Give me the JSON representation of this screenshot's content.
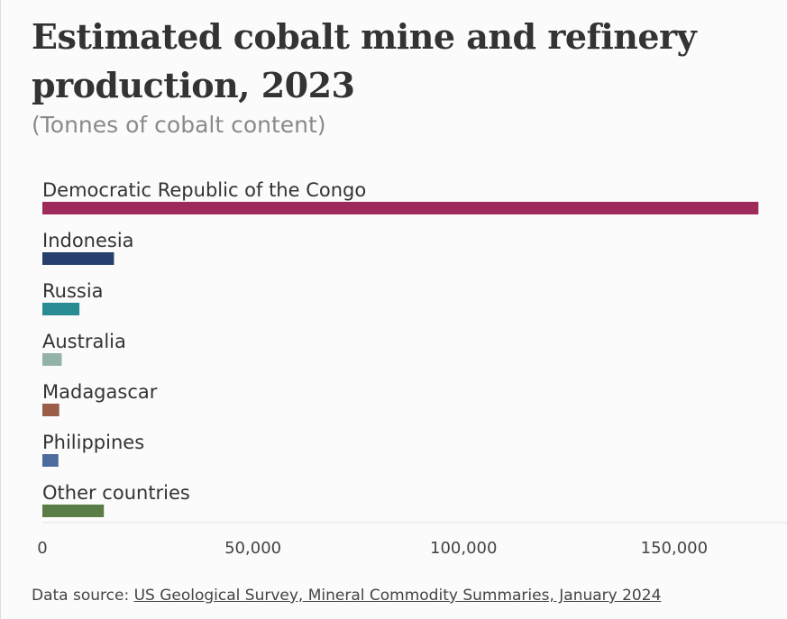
{
  "header": {
    "title": "Estimated cobalt mine and refinery production, 2023",
    "subtitle": "(Tonnes of cobalt content)"
  },
  "footer": {
    "source_prefix": "Data source: ",
    "source_link": "US Geological Survey, Mineral Commodity Summaries, January 2024"
  },
  "chart_data": {
    "type": "bar",
    "orientation": "horizontal",
    "title": "Estimated cobalt mine and refinery production, 2023",
    "subtitle": "(Tonnes of cobalt content)",
    "categories": [
      "Democratic Republic of the Congo",
      "Indonesia",
      "Russia",
      "Australia",
      "Madagascar",
      "Philippines",
      "Other countries"
    ],
    "values": [
      170000,
      17000,
      8800,
      4600,
      4000,
      3800,
      14600
    ],
    "colors": [
      "#9e2a5b",
      "#273f6d",
      "#2a8c93",
      "#93b3a9",
      "#9a5e48",
      "#4e6b9e",
      "#5a7d47"
    ],
    "xlim": [
      0,
      177000
    ],
    "xticks": [
      0,
      50000,
      100000,
      150000
    ],
    "xtick_labels": [
      "0",
      "50,000",
      "100,000",
      "150,000"
    ],
    "xlabel": "",
    "ylabel": "",
    "grid": false,
    "legend": "none"
  }
}
